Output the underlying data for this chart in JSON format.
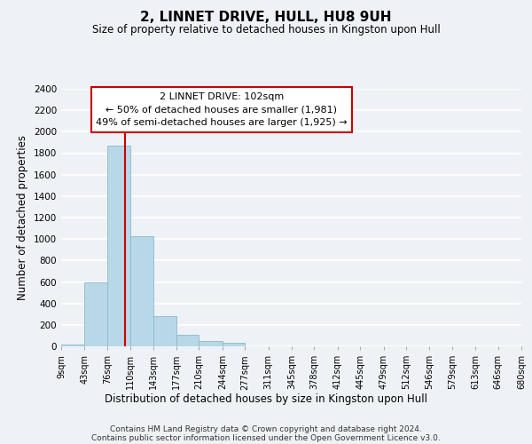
{
  "title": "2, LINNET DRIVE, HULL, HU8 9UH",
  "subtitle": "Size of property relative to detached houses in Kingston upon Hull",
  "xlabel": "Distribution of detached houses by size in Kingston upon Hull",
  "ylabel": "Number of detached properties",
  "bar_color": "#b8d8e8",
  "bar_edge_color": "#8ab8cc",
  "bins": [
    9,
    43,
    76,
    110,
    143,
    177,
    210,
    244,
    277,
    311,
    345,
    378,
    412,
    445,
    479,
    512,
    546,
    579,
    613,
    646,
    680
  ],
  "bin_labels": [
    "9sqm",
    "43sqm",
    "76sqm",
    "110sqm",
    "143sqm",
    "177sqm",
    "210sqm",
    "244sqm",
    "277sqm",
    "311sqm",
    "345sqm",
    "378sqm",
    "412sqm",
    "445sqm",
    "479sqm",
    "512sqm",
    "546sqm",
    "579sqm",
    "613sqm",
    "646sqm",
    "680sqm"
  ],
  "counts": [
    20,
    600,
    1870,
    1030,
    285,
    110,
    48,
    30,
    0,
    0,
    0,
    0,
    0,
    0,
    0,
    0,
    0,
    0,
    0,
    0
  ],
  "vline_x": 102,
  "vline_color": "#cc0000",
  "ylim": [
    0,
    2400
  ],
  "yticks": [
    0,
    200,
    400,
    600,
    800,
    1000,
    1200,
    1400,
    1600,
    1800,
    2000,
    2200,
    2400
  ],
  "annotation_title": "2 LINNET DRIVE: 102sqm",
  "annotation_line1": "← 50% of detached houses are smaller (1,981)",
  "annotation_line2": "49% of semi-detached houses are larger (1,925) →",
  "footer_line1": "Contains HM Land Registry data © Crown copyright and database right 2024.",
  "footer_line2": "Contains public sector information licensed under the Open Government Licence v3.0.",
  "background_color": "#eef2f6"
}
